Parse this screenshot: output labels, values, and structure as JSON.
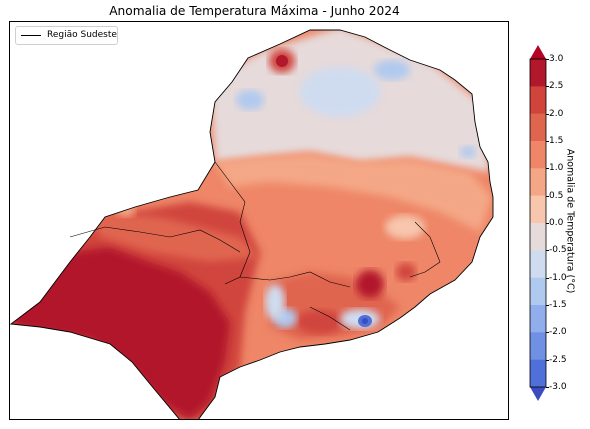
{
  "title": "Anomalia de Temperatura Máxima - Junho 2024",
  "legend": {
    "label": "Região Sudeste",
    "line_color": "#000000"
  },
  "colorbar": {
    "label": "Anomalia de Temperatura (°C)",
    "ticks": [
      "3.0",
      "2.5",
      "2.0",
      "1.5",
      "1.0",
      "0.5",
      "0.0",
      "-0.5",
      "-1.0",
      "-1.5",
      "-2.0",
      "-2.5",
      "-3.0"
    ],
    "colors": [
      "#b2182b",
      "#d0443c",
      "#e0654f",
      "#ee8667",
      "#f4a786",
      "#f7c6ad",
      "#e6dada",
      "#cfdcf0",
      "#b0c9ef",
      "#90aeeb",
      "#7090e4",
      "#4f70d8"
    ],
    "extend_over": "#b40426",
    "extend_under": "#3b4cc0"
  },
  "chart_data": {
    "type": "heatmap",
    "title": "Anomalia de Temperatura Máxima - Junho 2024",
    "value_range": [
      -3.0,
      3.0
    ],
    "levels": [
      -3.0,
      -2.5,
      -2.0,
      -1.5,
      -1.0,
      -0.5,
      0.0,
      0.5,
      1.0,
      1.5,
      2.0,
      2.5,
      3.0
    ],
    "colorbar_label": "Anomalia de Temperatura (°C)",
    "legend": [
      "Região Sudeste"
    ]
  }
}
